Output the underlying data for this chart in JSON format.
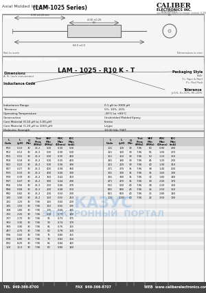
{
  "title_text": "Axial Molded Inductor",
  "series_text": "(LAM-1025 Series)",
  "company": "CALIBER",
  "company_sub": "ELECTRONICS INC.",
  "company_tagline": "specifications subject to change  revision: 6-2003",
  "section_bg": "#4a4a4a",
  "section_text_color": "#ffffff",
  "header_bg": "#cccccc",
  "table_alt_bg": "#e8e8e8",
  "dim_section": "Dimensions",
  "part_section": "Part Numbering Guide",
  "features_section": "Features",
  "elec_section": "Electrical Specifications",
  "part_number_display": "LAM - 1025 - R10 K - T",
  "dimensions_label": "Dimensions",
  "dimensions_sub": "A, B, (inch conversion)",
  "inductance_label": "Inductance Code",
  "packaging_label": "Packaging Style",
  "packaging_options": [
    "Bulk",
    "T= Tape & Reel",
    "P= Flat Pack"
  ],
  "tolerance_label": "Tolerance",
  "tolerance_options": [
    "J=5%, K=10%, M=20%"
  ],
  "features": [
    [
      "Inductance Range",
      "0.1 μH to 1000 μH"
    ],
    [
      "Tolerance",
      "5%, 10%, 20%"
    ],
    [
      "Operating Temperature",
      "-20°C to +85°C"
    ],
    [
      "Construction",
      "Unshielded Molded Epoxy"
    ],
    [
      "Core Material (0.10 μH to 1.00 μH)",
      "Ferrite"
    ],
    [
      "Core Material (1.20 μH to 1000 μH)",
      "L-type"
    ],
    [
      "Dielectric Strength",
      "10.00 Vdc TSET"
    ]
  ],
  "elec_data": [
    [
      "R10",
      "0.10",
      "30",
      "25.2",
      "500",
      "0.30",
      "500",
      "101",
      "100",
      "30",
      "7.96",
      "60",
      "0.90",
      "290"
    ],
    [
      "R12",
      "0.12",
      "30",
      "25.2",
      "500",
      "0.30",
      "500",
      "121",
      "120",
      "30",
      "7.96",
      "55",
      "1.00",
      "270"
    ],
    [
      "R15",
      "0.15",
      "30",
      "25.2",
      "500",
      "0.35",
      "460",
      "151",
      "150",
      "30",
      "7.96",
      "50",
      "1.10",
      "250"
    ],
    [
      "R18",
      "0.18",
      "30",
      "25.2",
      "500",
      "0.35",
      "420",
      "181",
      "180",
      "30",
      "7.96",
      "45",
      "1.20",
      "230"
    ],
    [
      "R22",
      "0.22",
      "30",
      "25.2",
      "500",
      "0.36",
      "390",
      "221",
      "220",
      "30",
      "7.96",
      "40",
      "1.30",
      "210"
    ],
    [
      "R27",
      "0.27",
      "30",
      "25.2",
      "400",
      "0.38",
      "360",
      "271",
      "270",
      "35",
      "7.96",
      "38",
      "1.40",
      "200"
    ],
    [
      "R33",
      "0.33",
      "30",
      "25.2",
      "400",
      "0.40",
      "330",
      "331",
      "330",
      "35",
      "7.96",
      "35",
      "1.60",
      "190"
    ],
    [
      "R39",
      "0.39",
      "30",
      "25.2",
      "350",
      "0.42",
      "310",
      "391",
      "390",
      "35",
      "7.96",
      "32",
      "1.80",
      "180"
    ],
    [
      "R47",
      "0.47",
      "30",
      "25.2",
      "300",
      "0.44",
      "290",
      "471",
      "470",
      "35",
      "7.96",
      "30",
      "2.00",
      "170"
    ],
    [
      "R56",
      "0.56",
      "30",
      "25.2",
      "250",
      "0.46",
      "270",
      "561",
      "560",
      "40",
      "7.96",
      "28",
      "2.20",
      "160"
    ],
    [
      "R68",
      "0.68",
      "30",
      "25.2",
      "200",
      "0.48",
      "250",
      "681",
      "680",
      "40",
      "7.96",
      "26",
      "2.50",
      "150"
    ],
    [
      "R82",
      "0.82",
      "30",
      "25.2",
      "200",
      "0.50",
      "230",
      "821",
      "820",
      "40",
      "7.96",
      "25",
      "2.80",
      "140"
    ],
    [
      "1R0",
      "1.00",
      "30",
      "25.2",
      "150",
      "0.55",
      "210",
      "102",
      "1000",
      "40",
      "7.96",
      "22",
      "3.50",
      "130"
    ],
    [
      "1R2",
      "1.20",
      "30",
      "7.96",
      "120",
      "0.60",
      "200",
      "",
      "",
      "",
      "",
      "",
      "",
      ""
    ],
    [
      "1R5",
      "1.50",
      "30",
      "7.96",
      "110",
      "0.65",
      "195",
      "",
      "",
      "",
      "",
      "",
      "",
      ""
    ],
    [
      "1R8",
      "1.80",
      "30",
      "7.96",
      "105",
      "0.68",
      "185",
      "",
      "",
      "",
      "",
      "",
      "",
      ""
    ],
    [
      "2R2",
      "2.20",
      "30",
      "7.96",
      "100",
      "0.70",
      "180",
      "",
      "",
      "",
      "",
      "",
      "",
      ""
    ],
    [
      "2R7",
      "2.70",
      "30",
      "7.96",
      "95",
      "0.72",
      "175",
      "",
      "",
      "",
      "",
      "",
      "",
      ""
    ],
    [
      "3R3",
      "3.30",
      "30",
      "7.96",
      "90",
      "0.74",
      "170",
      "",
      "",
      "",
      "",
      "",
      "",
      ""
    ],
    [
      "3R9",
      "3.90",
      "30",
      "7.96",
      "85",
      "0.76",
      "165",
      "",
      "",
      "",
      "",
      "",
      "",
      ""
    ],
    [
      "4R7",
      "4.70",
      "30",
      "7.96",
      "80",
      "0.78",
      "160",
      "",
      "",
      "",
      "",
      "",
      "",
      ""
    ],
    [
      "5R6",
      "5.60",
      "30",
      "7.96",
      "75",
      "0.80",
      "155",
      "",
      "",
      "",
      "",
      "",
      "",
      ""
    ],
    [
      "6R8",
      "6.80",
      "30",
      "7.96",
      "70",
      "0.82",
      "150",
      "",
      "",
      "",
      "",
      "",
      "",
      ""
    ],
    [
      "8R2",
      "8.20",
      "30",
      "7.96",
      "65",
      "0.84",
      "145",
      "",
      "",
      "",
      "",
      "",
      "",
      ""
    ],
    [
      "100",
      "10.0",
      "30",
      "7.96",
      "60",
      "0.86",
      "140",
      "",
      "",
      "",
      "",
      "",
      "",
      ""
    ]
  ],
  "footer_tel": "TEL  949-366-8700",
  "footer_fax": "FAX  949-366-8707",
  "footer_web": "WEB  www.caliberelectronics.com",
  "watermark_line1": "КАЗУС",
  "watermark_line2": "ЭЛЕКТРОННЫЙ  ПОРТАЛ",
  "not_to_scale": "Not to scale",
  "dim_units": "Dimensions in mm"
}
